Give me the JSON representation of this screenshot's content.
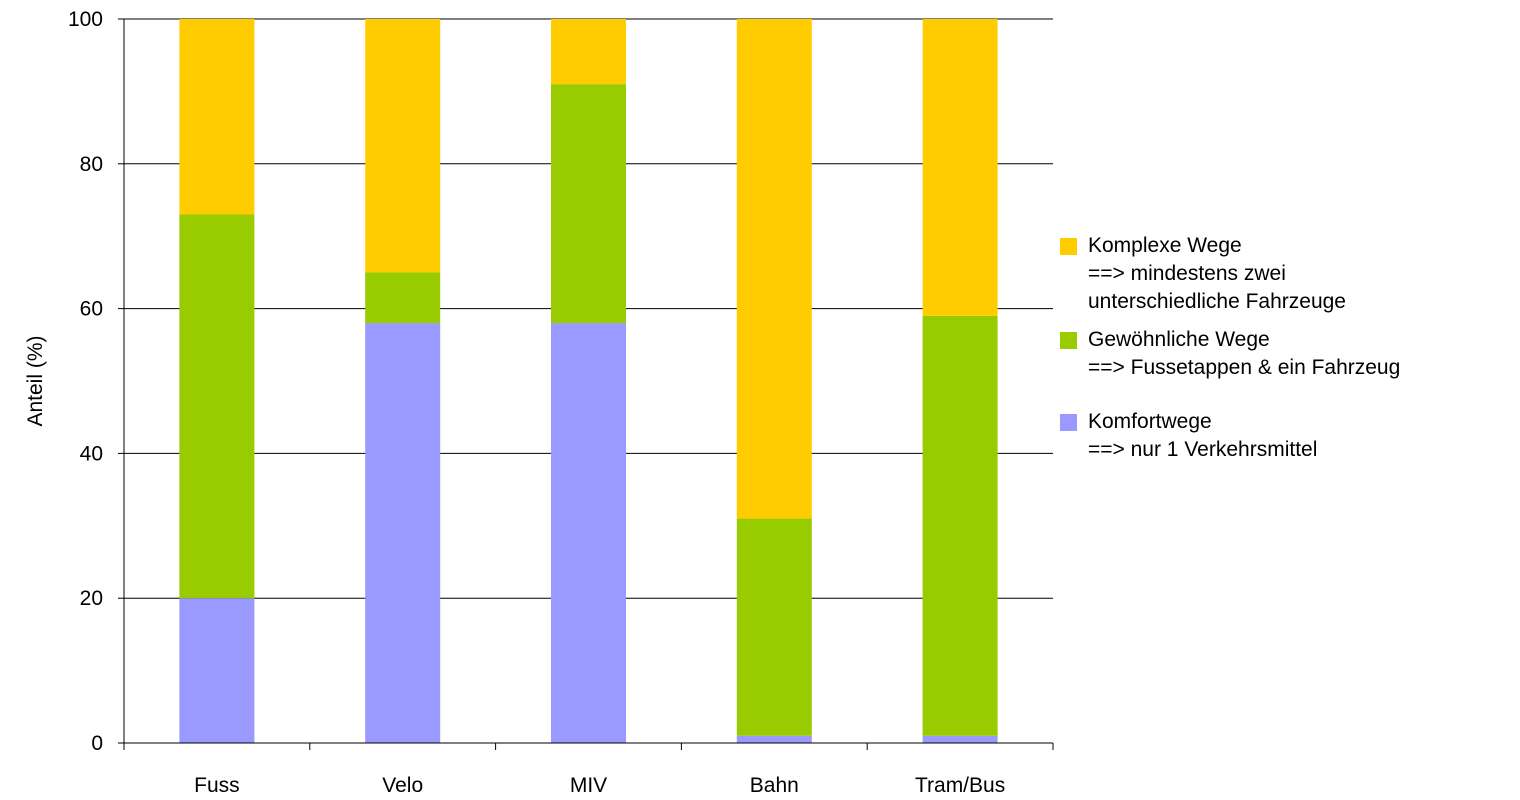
{
  "chart_data": {
    "type": "bar",
    "stacked": true,
    "categories": [
      "Fuss",
      "Velo",
      "MIV",
      "Bahn",
      "Tram/Bus"
    ],
    "series": [
      {
        "name": "Komfortwege\n==> nur 1 Verkehrsmittel",
        "color": "#9999ff",
        "values": [
          20,
          58,
          58,
          1,
          1
        ]
      },
      {
        "name": "Gewöhnliche Wege\n==> Fussetappen & ein Fahrzeug",
        "color": "#99cc00",
        "values": [
          53,
          7,
          33,
          30,
          58
        ]
      },
      {
        "name": "Komplexe Wege\n==> mindestens zwei\nunterschiedliche Fahrzeuge",
        "color": "#ffcc00",
        "values": [
          27,
          35,
          9,
          69,
          41
        ]
      }
    ],
    "xlabel": "",
    "ylabel": "Anteil (%)",
    "ylim": [
      0,
      100
    ],
    "yticks": [
      0,
      20,
      40,
      60,
      80,
      100
    ],
    "grid": true,
    "legend_position": "right"
  }
}
